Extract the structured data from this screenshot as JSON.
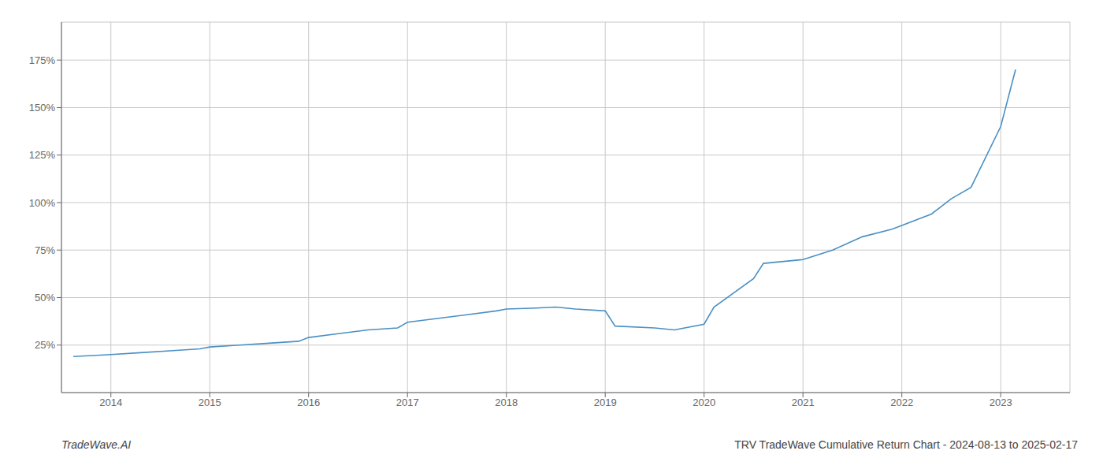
{
  "chart_data": {
    "type": "line",
    "title": "TRV TradeWave Cumulative Return Chart - 2024-08-13 to 2025-02-17",
    "subtitle": "TradeWave.AI",
    "x": [
      2013.62,
      2014.0,
      2014.3,
      2014.6,
      2014.9,
      2015.0,
      2015.3,
      2015.6,
      2015.9,
      2016.0,
      2016.3,
      2016.6,
      2016.9,
      2017.0,
      2017.3,
      2017.6,
      2017.9,
      2018.0,
      2018.3,
      2018.5,
      2018.7,
      2019.0,
      2019.1,
      2019.5,
      2019.7,
      2020.0,
      2020.1,
      2020.5,
      2020.6,
      2021.0,
      2021.3,
      2021.6,
      2021.9,
      2022.0,
      2022.3,
      2022.4,
      2022.5,
      2022.7,
      2023.0,
      2023.15
    ],
    "values": [
      19,
      20,
      21,
      22,
      23,
      24,
      25,
      26,
      27,
      29,
      31,
      33,
      34,
      37,
      39,
      41,
      43,
      44,
      44.5,
      45,
      44,
      43,
      35,
      34,
      33,
      36,
      45,
      60,
      68,
      70,
      75,
      82,
      86,
      88,
      94,
      98,
      102,
      108,
      140,
      170
    ],
    "color": "#4a90c4",
    "xlim": [
      2013.5,
      2023.7
    ],
    "xticks": [
      2014,
      2015,
      2016,
      2017,
      2018,
      2019,
      2020,
      2021,
      2022,
      2023
    ],
    "ylim": [
      0,
      195
    ],
    "yticks": [
      {
        "value": 25,
        "label": "25%"
      },
      {
        "value": 50,
        "label": "50%"
      },
      {
        "value": 75,
        "label": "75%"
      },
      {
        "value": 100,
        "label": "100%"
      },
      {
        "value": 125,
        "label": "125%"
      },
      {
        "value": 150,
        "label": "150%"
      },
      {
        "value": 175,
        "label": "175%"
      }
    ],
    "grid": true
  }
}
